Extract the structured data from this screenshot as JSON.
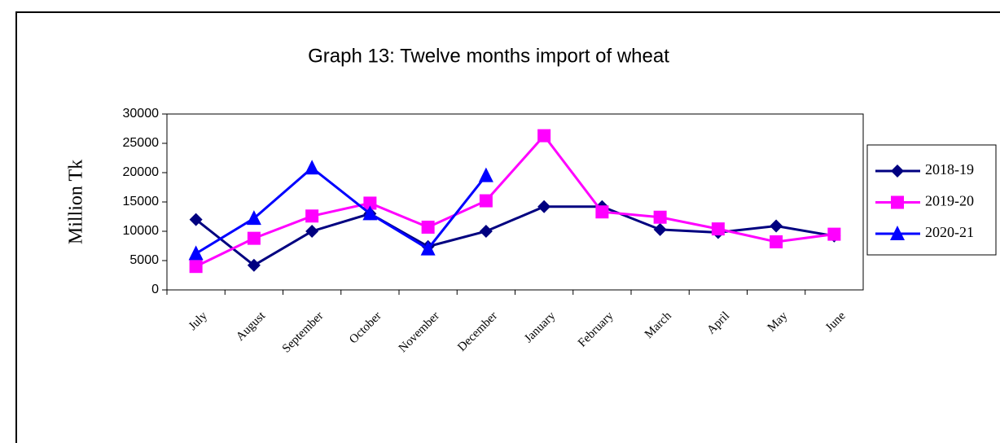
{
  "chart_data": {
    "type": "line",
    "title": "Graph 13: Twelve months import of wheat",
    "y_label": "Million Tk",
    "categories": [
      "July",
      "August",
      "September",
      "October",
      "November",
      "December",
      "January",
      "February",
      "March",
      "April",
      "May",
      "June"
    ],
    "series": [
      {
        "name": "2018-19",
        "color": "#000080",
        "marker": "diamond",
        "values": [
          12000,
          4200,
          10000,
          13000,
          7400,
          10000,
          14200,
          14200,
          10300,
          9800,
          10900,
          9200
        ]
      },
      {
        "name": "2019-20",
        "color": "#ff00ff",
        "marker": "square",
        "values": [
          4000,
          8800,
          12600,
          14800,
          10700,
          15200,
          26300,
          13300,
          12400,
          10400,
          8200,
          9500
        ]
      },
      {
        "name": "2020-21",
        "color": "#0000ff",
        "marker": "triangle",
        "values": [
          6200,
          12200,
          20800,
          13000,
          7000,
          19500,
          null,
          null,
          null,
          null,
          null,
          null
        ]
      }
    ],
    "ylim": [
      0,
      30000
    ],
    "yticks": [
      0,
      5000,
      10000,
      15000,
      20000,
      25000,
      30000
    ],
    "legend": "right"
  }
}
